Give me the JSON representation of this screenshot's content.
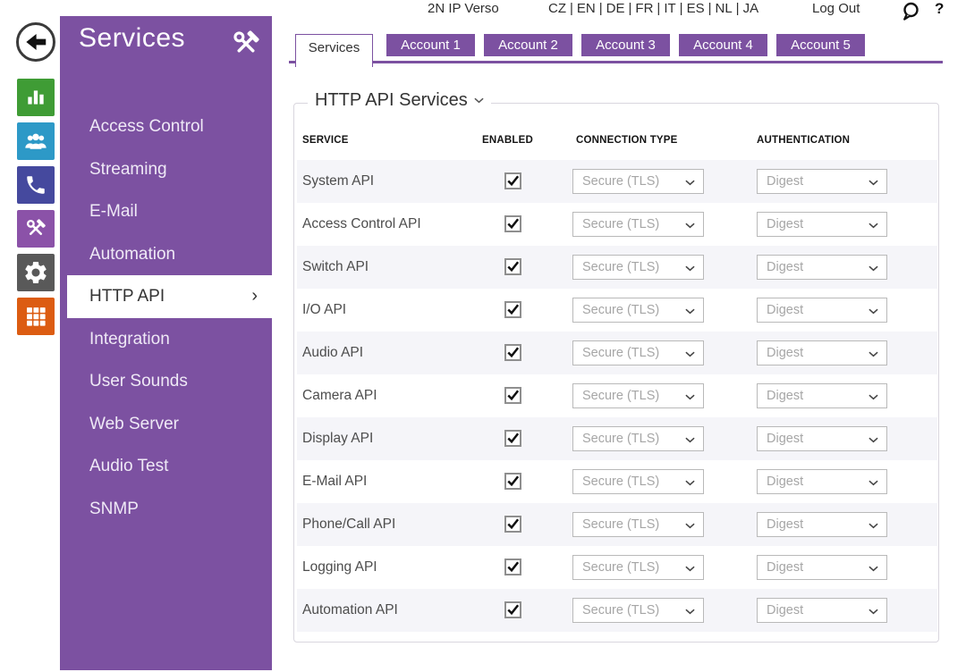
{
  "topbar": {
    "device_name": "2N IP Verso",
    "languages": [
      "CZ",
      "EN",
      "DE",
      "FR",
      "IT",
      "ES",
      "NL",
      "JA"
    ],
    "language_separator": "|",
    "logout_label": "Log Out",
    "help_label": "?"
  },
  "sidebar": {
    "title": "Services",
    "title_icon": "tools-icon",
    "selected_chevron": "›",
    "items": [
      {
        "label": "Access Control",
        "selected": false
      },
      {
        "label": "Streaming",
        "selected": false
      },
      {
        "label": "E-Mail",
        "selected": false
      },
      {
        "label": "Automation",
        "selected": false
      },
      {
        "label": "HTTP API",
        "selected": true
      },
      {
        "label": "Integration",
        "selected": false
      },
      {
        "label": "User Sounds",
        "selected": false
      },
      {
        "label": "Web Server",
        "selected": false
      },
      {
        "label": "Audio Test",
        "selected": false
      },
      {
        "label": "SNMP",
        "selected": false
      }
    ]
  },
  "app_nav": {
    "icons": [
      {
        "name": "bar-chart-icon",
        "color": "#3f9c35"
      },
      {
        "name": "people-icon",
        "color": "#2d99c7"
      },
      {
        "name": "phone-icon",
        "color": "#45499e"
      },
      {
        "name": "tools-icon",
        "color": "#8b52a8"
      },
      {
        "name": "gear-icon",
        "color": "#595959"
      },
      {
        "name": "grid-icon",
        "color": "#dc5c12"
      }
    ]
  },
  "tabs": [
    {
      "label": "Services",
      "active": true
    },
    {
      "label": "Account 1",
      "active": false
    },
    {
      "label": "Account 2",
      "active": false
    },
    {
      "label": "Account 3",
      "active": false
    },
    {
      "label": "Account 4",
      "active": false
    },
    {
      "label": "Account 5",
      "active": false
    }
  ],
  "panel": {
    "title": "HTTP API Services",
    "columns": [
      "SERVICE",
      "ENABLED",
      "CONNECTION TYPE",
      "AUTHENTICATION"
    ],
    "rows": [
      {
        "service": "System API",
        "enabled": true,
        "connection_type": "Secure (TLS)",
        "authentication": "Digest"
      },
      {
        "service": "Access Control API",
        "enabled": true,
        "connection_type": "Secure (TLS)",
        "authentication": "Digest"
      },
      {
        "service": "Switch API",
        "enabled": true,
        "connection_type": "Secure (TLS)",
        "authentication": "Digest"
      },
      {
        "service": "I/O API",
        "enabled": true,
        "connection_type": "Secure (TLS)",
        "authentication": "Digest"
      },
      {
        "service": "Audio API",
        "enabled": true,
        "connection_type": "Secure (TLS)",
        "authentication": "Digest"
      },
      {
        "service": "Camera API",
        "enabled": true,
        "connection_type": "Secure (TLS)",
        "authentication": "Digest"
      },
      {
        "service": "Display API",
        "enabled": true,
        "connection_type": "Secure (TLS)",
        "authentication": "Digest"
      },
      {
        "service": "E-Mail API",
        "enabled": true,
        "connection_type": "Secure (TLS)",
        "authentication": "Digest"
      },
      {
        "service": "Phone/Call API",
        "enabled": true,
        "connection_type": "Secure (TLS)",
        "authentication": "Digest"
      },
      {
        "service": "Logging API",
        "enabled": true,
        "connection_type": "Secure (TLS)",
        "authentication": "Digest"
      },
      {
        "service": "Automation API",
        "enabled": true,
        "connection_type": "Secure (TLS)",
        "authentication": "Digest"
      }
    ]
  },
  "colors": {
    "accent_purple": "#7c51a1",
    "row_shade": "#f5f5f9",
    "icon_green": "#3f9c35",
    "icon_blue": "#2d99c7",
    "icon_indigo": "#45499e",
    "icon_purple": "#8b52a8",
    "icon_gray": "#595959",
    "icon_orange": "#dc5c12"
  }
}
